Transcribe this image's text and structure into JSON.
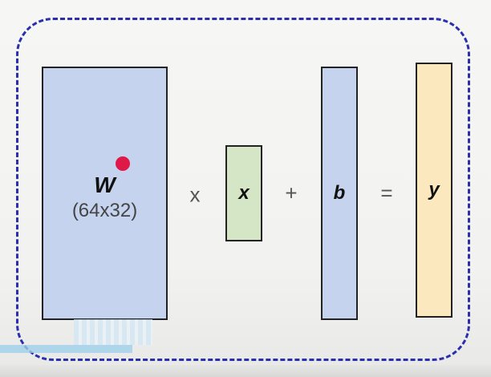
{
  "diagram": {
    "matrix_w": {
      "symbol": "W",
      "dims": "(64x32)"
    },
    "vector_x": {
      "symbol": "x"
    },
    "vector_b": {
      "symbol": "b"
    },
    "vector_y": {
      "symbol": "y"
    },
    "operators": {
      "multiply": "x",
      "plus": "+",
      "equals": "="
    }
  },
  "colors": {
    "frame_border": "#2a2fb0",
    "matrix_fill": "#c5d3ee",
    "x_fill": "#d5e6c7",
    "b_fill": "#c5d3ee",
    "y_fill": "#fbe8bf",
    "pointer_dot": "#e01848"
  }
}
